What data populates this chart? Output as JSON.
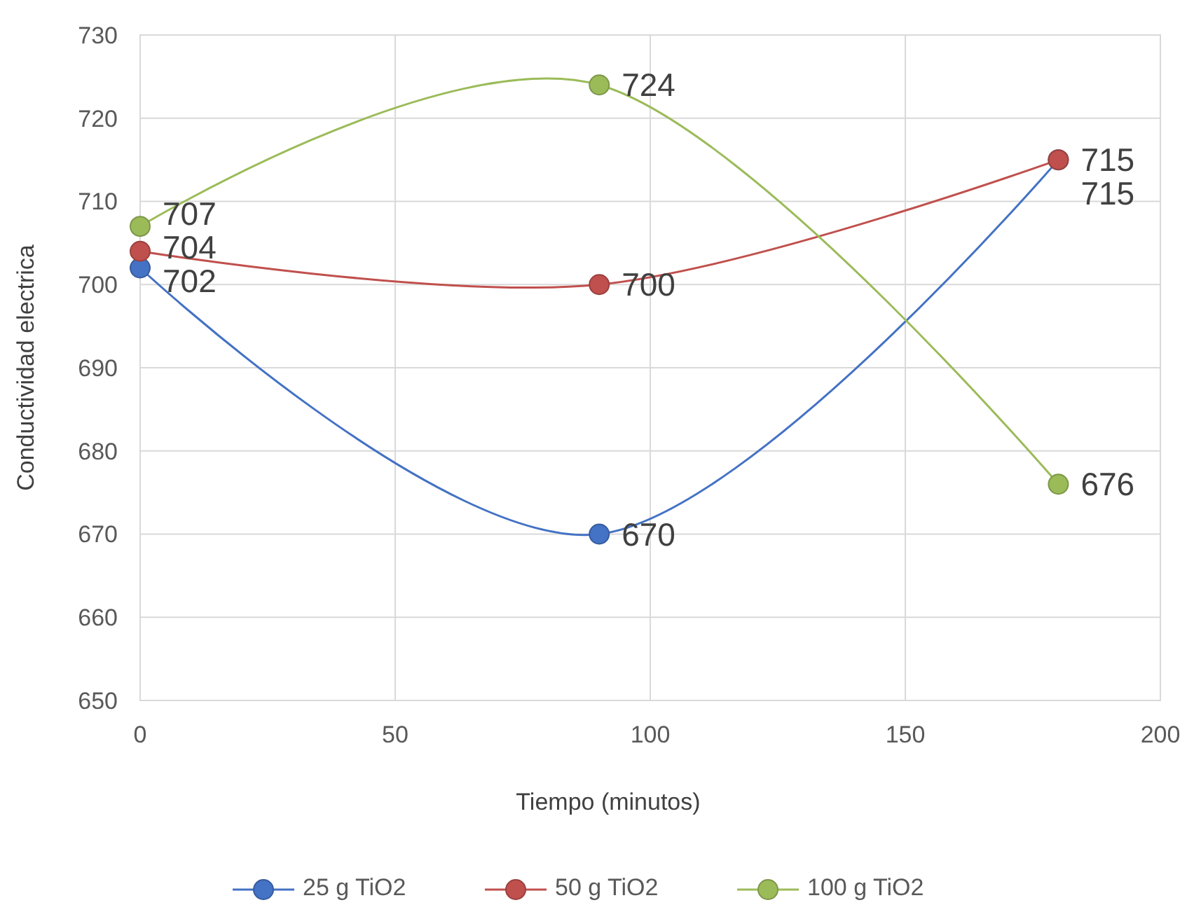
{
  "chart_data": {
    "type": "line",
    "xlabel": "Tiempo (minutos)",
    "ylabel": "Conductividad electrica",
    "x": [
      0,
      90,
      180
    ],
    "series": [
      {
        "name": "25 g TiO2",
        "color": "#4472c4",
        "values": [
          702,
          670,
          715
        ]
      },
      {
        "name": "50 g TiO2",
        "color": "#c0504d",
        "values": [
          704,
          700,
          715
        ]
      },
      {
        "name": "100 g TiO2",
        "color": "#9bbb59",
        "values": [
          707,
          724,
          676
        ]
      }
    ],
    "xlim": [
      0,
      200
    ],
    "xticks": [
      0,
      50,
      100,
      150,
      200
    ],
    "ylim": [
      650,
      730
    ],
    "yticks": [
      650,
      660,
      670,
      680,
      690,
      700,
      710,
      720,
      730
    ],
    "grid": true,
    "legend": "bottom",
    "marker": "circle",
    "line_style": "solid",
    "data_labels": true
  }
}
